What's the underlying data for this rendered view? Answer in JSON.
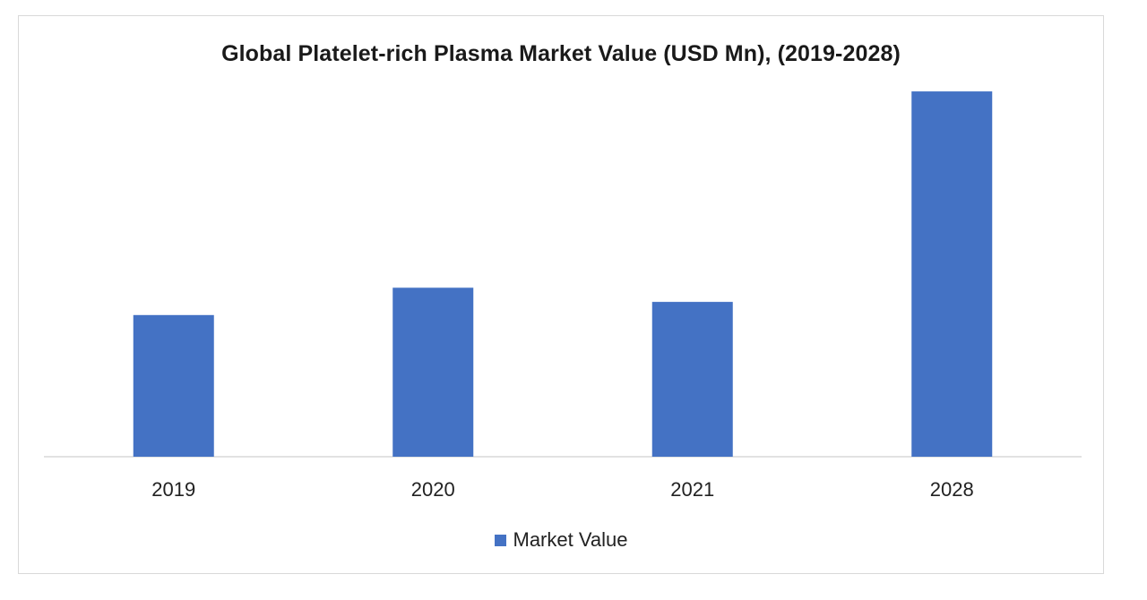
{
  "chart_data": {
    "type": "bar",
    "title": "Global Platelet-rich Plasma Market Value (USD Mn), (2019-2028)",
    "xlabel": "",
    "ylabel": "",
    "categories": [
      "2019",
      "2020",
      "2021",
      "2028"
    ],
    "series": [
      {
        "name": "Market Value",
        "values": [
          140,
          167,
          153,
          361
        ],
        "color": "#4472c4"
      }
    ],
    "ylim": [
      0,
      400
    ],
    "grid": false,
    "legend_position": "bottom"
  }
}
